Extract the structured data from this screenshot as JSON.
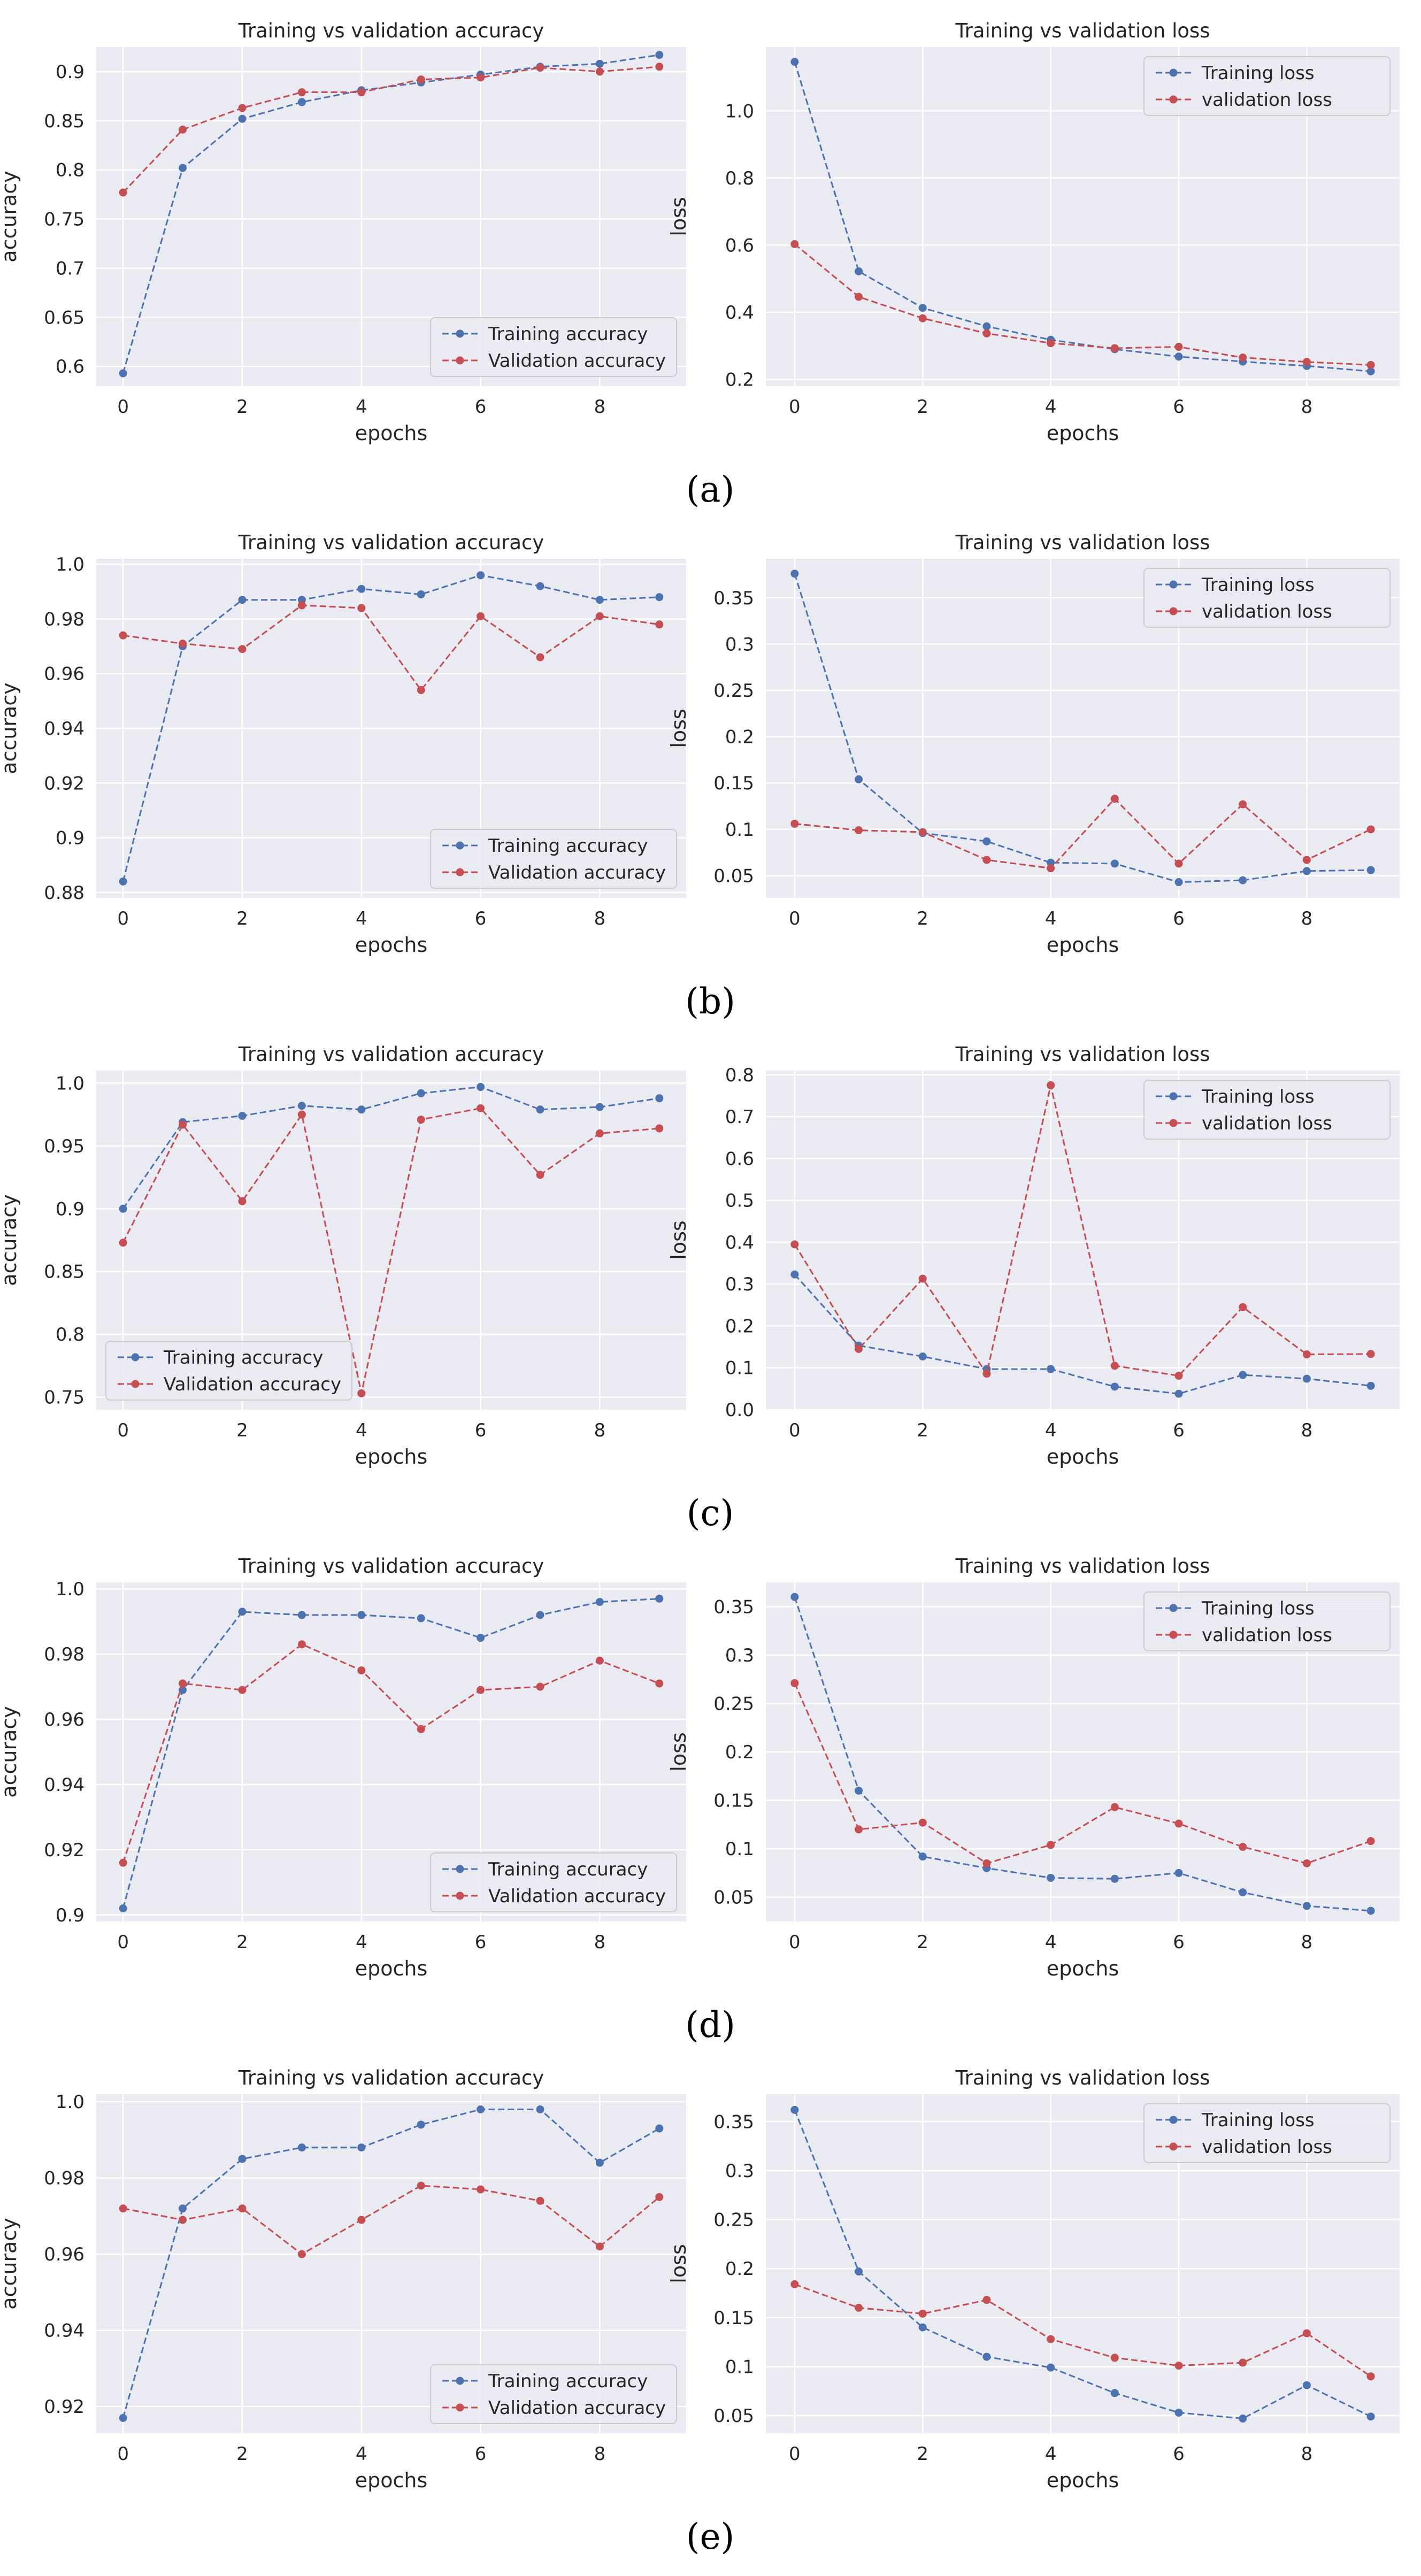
{
  "figure": {
    "panels": [
      {
        "label": "(a)"
      },
      {
        "label": "(b)"
      },
      {
        "label": "(c)"
      },
      {
        "label": "(d)"
      },
      {
        "label": "(e)"
      }
    ]
  },
  "colors": {
    "background": "#EAEAF2",
    "grid": "#FFFFFF",
    "training": "#4C72B0",
    "validation": "#C44E52",
    "text": "#262626"
  },
  "chart_data": [
    {
      "type": "line",
      "panel": "(a)",
      "metric": "accuracy",
      "title": "Training vs validation accuracy",
      "xlabel": "epochs",
      "ylabel": "accuracy",
      "x": [
        0,
        1,
        2,
        3,
        4,
        5,
        6,
        7,
        8,
        9
      ],
      "xlim": [
        -0.45,
        9.45
      ],
      "ylim": [
        0.58,
        0.925
      ],
      "xticks": [
        0,
        2,
        4,
        6,
        8
      ],
      "yticks": [
        0.6,
        0.65,
        0.7,
        0.75,
        0.8,
        0.85,
        0.9
      ],
      "legend_position": "lower-right",
      "series": [
        {
          "name": "Training accuracy",
          "color": "#4C72B0",
          "values": [
            0.593,
            0.802,
            0.852,
            0.869,
            0.881,
            0.889,
            0.897,
            0.905,
            0.908,
            0.917
          ]
        },
        {
          "name": "Validation accuracy",
          "color": "#C44E52",
          "values": [
            0.777,
            0.841,
            0.863,
            0.879,
            0.879,
            0.892,
            0.894,
            0.904,
            0.9,
            0.905
          ]
        }
      ]
    },
    {
      "type": "line",
      "panel": "(a)",
      "metric": "loss",
      "title": "Training vs validation loss",
      "xlabel": "epochs",
      "ylabel": "loss",
      "x": [
        0,
        1,
        2,
        3,
        4,
        5,
        6,
        7,
        8,
        9
      ],
      "xlim": [
        -0.45,
        9.45
      ],
      "ylim": [
        0.18,
        1.19
      ],
      "xticks": [
        0,
        2,
        4,
        6,
        8
      ],
      "yticks": [
        0.2,
        0.4,
        0.6,
        0.8,
        1.0
      ],
      "legend_position": "upper-right",
      "series": [
        {
          "name": "Training loss",
          "color": "#4C72B0",
          "values": [
            1.146,
            0.522,
            0.413,
            0.358,
            0.318,
            0.29,
            0.268,
            0.253,
            0.24,
            0.224
          ]
        },
        {
          "name": "validation loss",
          "color": "#C44E52",
          "values": [
            0.603,
            0.446,
            0.382,
            0.337,
            0.308,
            0.293,
            0.297,
            0.265,
            0.252,
            0.243
          ]
        }
      ]
    },
    {
      "type": "line",
      "panel": "(b)",
      "metric": "accuracy",
      "title": "Training vs validation accuracy",
      "xlabel": "epochs",
      "ylabel": "accuracy",
      "x": [
        0,
        1,
        2,
        3,
        4,
        5,
        6,
        7,
        8,
        9
      ],
      "xlim": [
        -0.45,
        9.45
      ],
      "ylim": [
        0.878,
        1.002
      ],
      "xticks": [
        0,
        2,
        4,
        6,
        8
      ],
      "yticks": [
        0.88,
        0.9,
        0.92,
        0.94,
        0.96,
        0.98,
        1.0
      ],
      "legend_position": "lower-right",
      "series": [
        {
          "name": "Training accuracy",
          "color": "#4C72B0",
          "values": [
            0.884,
            0.97,
            0.987,
            0.987,
            0.991,
            0.989,
            0.996,
            0.992,
            0.987,
            0.988
          ]
        },
        {
          "name": "Validation accuracy",
          "color": "#C44E52",
          "values": [
            0.974,
            0.971,
            0.969,
            0.985,
            0.984,
            0.954,
            0.981,
            0.966,
            0.981,
            0.978
          ]
        }
      ]
    },
    {
      "type": "line",
      "panel": "(b)",
      "metric": "loss",
      "title": "Training vs validation loss",
      "xlabel": "epochs",
      "ylabel": "loss",
      "x": [
        0,
        1,
        2,
        3,
        4,
        5,
        6,
        7,
        8,
        9
      ],
      "xlim": [
        -0.45,
        9.45
      ],
      "ylim": [
        0.026,
        0.392
      ],
      "xticks": [
        0,
        2,
        4,
        6,
        8
      ],
      "yticks": [
        0.05,
        0.1,
        0.15,
        0.2,
        0.25,
        0.3,
        0.35
      ],
      "legend_position": "upper-right",
      "series": [
        {
          "name": "Training loss",
          "color": "#4C72B0",
          "values": [
            0.376,
            0.154,
            0.096,
            0.087,
            0.064,
            0.063,
            0.043,
            0.045,
            0.055,
            0.056
          ]
        },
        {
          "name": "validation loss",
          "color": "#C44E52",
          "values": [
            0.106,
            0.099,
            0.097,
            0.067,
            0.058,
            0.133,
            0.063,
            0.127,
            0.067,
            0.1
          ]
        }
      ]
    },
    {
      "type": "line",
      "panel": "(c)",
      "metric": "accuracy",
      "title": "Training vs validation accuracy",
      "xlabel": "epochs",
      "ylabel": "accuracy",
      "x": [
        0,
        1,
        2,
        3,
        4,
        5,
        6,
        7,
        8,
        9
      ],
      "xlim": [
        -0.45,
        9.45
      ],
      "ylim": [
        0.74,
        1.01
      ],
      "xticks": [
        0,
        2,
        4,
        6,
        8
      ],
      "yticks": [
        0.75,
        0.8,
        0.85,
        0.9,
        0.95,
        1.0
      ],
      "legend_position": "lower-left",
      "series": [
        {
          "name": "Training accuracy",
          "color": "#4C72B0",
          "values": [
            0.9,
            0.969,
            0.974,
            0.982,
            0.979,
            0.992,
            0.997,
            0.979,
            0.981,
            0.988
          ]
        },
        {
          "name": "Validation accuracy",
          "color": "#C44E52",
          "values": [
            0.873,
            0.967,
            0.906,
            0.975,
            0.753,
            0.971,
            0.98,
            0.927,
            0.96,
            0.964
          ]
        }
      ]
    },
    {
      "type": "line",
      "panel": "(c)",
      "metric": "loss",
      "title": "Training vs validation loss",
      "xlabel": "epochs",
      "ylabel": "loss",
      "x": [
        0,
        1,
        2,
        3,
        4,
        5,
        6,
        7,
        8,
        9
      ],
      "xlim": [
        -0.45,
        9.45
      ],
      "ylim": [
        0.0,
        0.81
      ],
      "xticks": [
        0,
        2,
        4,
        6,
        8
      ],
      "yticks": [
        0.0,
        0.1,
        0.2,
        0.3,
        0.4,
        0.5,
        0.6,
        0.7,
        0.8
      ],
      "legend_position": "upper-right",
      "series": [
        {
          "name": "Training loss",
          "color": "#4C72B0",
          "values": [
            0.323,
            0.153,
            0.127,
            0.097,
            0.097,
            0.055,
            0.038,
            0.083,
            0.074,
            0.057
          ]
        },
        {
          "name": "validation loss",
          "color": "#C44E52",
          "values": [
            0.395,
            0.145,
            0.313,
            0.086,
            0.775,
            0.105,
            0.081,
            0.245,
            0.132,
            0.133
          ]
        }
      ]
    },
    {
      "type": "line",
      "panel": "(d)",
      "metric": "accuracy",
      "title": "Training vs validation accuracy",
      "xlabel": "epochs",
      "ylabel": "accuracy",
      "x": [
        0,
        1,
        2,
        3,
        4,
        5,
        6,
        7,
        8,
        9
      ],
      "xlim": [
        -0.45,
        9.45
      ],
      "ylim": [
        0.898,
        1.002
      ],
      "xticks": [
        0,
        2,
        4,
        6,
        8
      ],
      "yticks": [
        0.9,
        0.92,
        0.94,
        0.96,
        0.98,
        1.0
      ],
      "legend_position": "lower-right",
      "series": [
        {
          "name": "Training accuracy",
          "color": "#4C72B0",
          "values": [
            0.902,
            0.969,
            0.993,
            0.992,
            0.992,
            0.991,
            0.985,
            0.992,
            0.996,
            0.997
          ]
        },
        {
          "name": "Validation accuracy",
          "color": "#C44E52",
          "values": [
            0.916,
            0.971,
            0.969,
            0.983,
            0.975,
            0.957,
            0.969,
            0.97,
            0.978,
            0.971
          ]
        }
      ]
    },
    {
      "type": "line",
      "panel": "(d)",
      "metric": "loss",
      "title": "Training vs validation loss",
      "xlabel": "epochs",
      "ylabel": "loss",
      "x": [
        0,
        1,
        2,
        3,
        4,
        5,
        6,
        7,
        8,
        9
      ],
      "xlim": [
        -0.45,
        9.45
      ],
      "ylim": [
        0.025,
        0.375
      ],
      "xticks": [
        0,
        2,
        4,
        6,
        8
      ],
      "yticks": [
        0.05,
        0.1,
        0.15,
        0.2,
        0.25,
        0.3,
        0.35
      ],
      "legend_position": "upper-right",
      "series": [
        {
          "name": "Training loss",
          "color": "#4C72B0",
          "values": [
            0.36,
            0.16,
            0.092,
            0.08,
            0.07,
            0.069,
            0.075,
            0.055,
            0.041,
            0.036
          ]
        },
        {
          "name": "validation loss",
          "color": "#C44E52",
          "values": [
            0.271,
            0.12,
            0.127,
            0.085,
            0.104,
            0.143,
            0.126,
            0.102,
            0.085,
            0.108
          ]
        }
      ]
    },
    {
      "type": "line",
      "panel": "(e)",
      "metric": "accuracy",
      "title": "Training vs validation accuracy",
      "xlabel": "epochs",
      "ylabel": "accuracy",
      "x": [
        0,
        1,
        2,
        3,
        4,
        5,
        6,
        7,
        8,
        9
      ],
      "xlim": [
        -0.45,
        9.45
      ],
      "ylim": [
        0.913,
        1.002
      ],
      "xticks": [
        0,
        2,
        4,
        6,
        8
      ],
      "yticks": [
        0.92,
        0.94,
        0.96,
        0.98,
        1.0
      ],
      "legend_position": "lower-right",
      "series": [
        {
          "name": "Training accuracy",
          "color": "#4C72B0",
          "values": [
            0.917,
            0.972,
            0.985,
            0.988,
            0.988,
            0.994,
            0.998,
            0.998,
            0.984,
            0.993
          ]
        },
        {
          "name": "Validation accuracy",
          "color": "#C44E52",
          "values": [
            0.972,
            0.969,
            0.972,
            0.96,
            0.969,
            0.978,
            0.977,
            0.974,
            0.962,
            0.975
          ]
        }
      ]
    },
    {
      "type": "line",
      "panel": "(e)",
      "metric": "loss",
      "title": "Training vs validation loss",
      "xlabel": "epochs",
      "ylabel": "loss",
      "x": [
        0,
        1,
        2,
        3,
        4,
        5,
        6,
        7,
        8,
        9
      ],
      "xlim": [
        -0.45,
        9.45
      ],
      "ylim": [
        0.032,
        0.378
      ],
      "xticks": [
        0,
        2,
        4,
        6,
        8
      ],
      "yticks": [
        0.05,
        0.1,
        0.15,
        0.2,
        0.25,
        0.3,
        0.35
      ],
      "legend_position": "upper-right",
      "series": [
        {
          "name": "Training loss",
          "color": "#4C72B0",
          "values": [
            0.362,
            0.197,
            0.14,
            0.11,
            0.099,
            0.073,
            0.053,
            0.047,
            0.081,
            0.049
          ]
        },
        {
          "name": "validation loss",
          "color": "#C44E52",
          "values": [
            0.184,
            0.16,
            0.154,
            0.168,
            0.128,
            0.109,
            0.101,
            0.104,
            0.134,
            0.09
          ]
        }
      ]
    }
  ]
}
